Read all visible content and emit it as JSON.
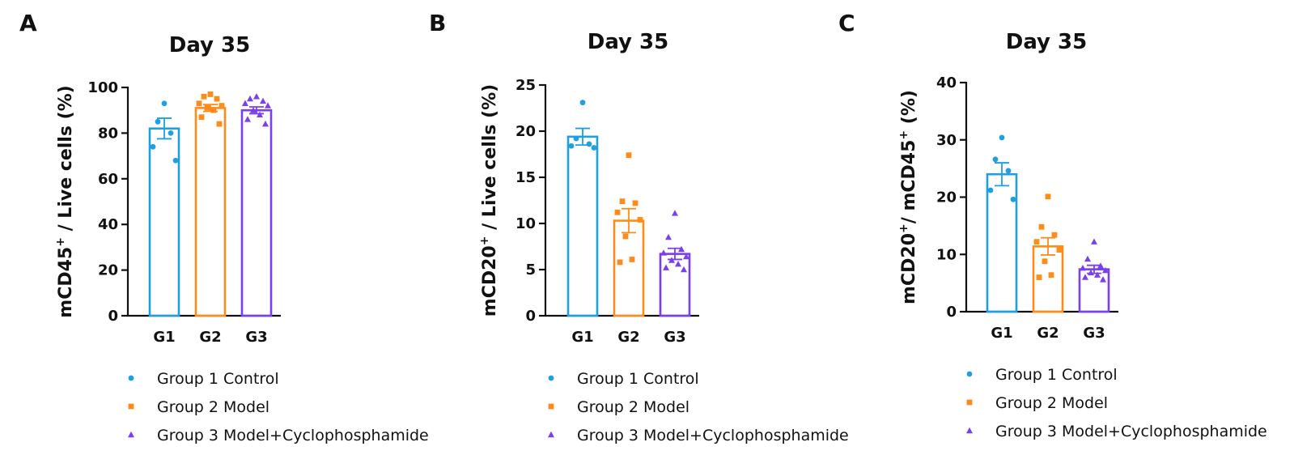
{
  "legend": [
    {
      "label": "Group 1 Control",
      "marker": "circle",
      "color": "#1ea0e0"
    },
    {
      "label": "Group 2 Model",
      "marker": "square",
      "color": "#ff8c1a"
    },
    {
      "label": "Group 3 Model+Cyclophosphamide",
      "marker": "triangle",
      "color": "#7a3ff0"
    }
  ],
  "chart_data": [
    {
      "type": "bar",
      "panel": "A",
      "title": "Day 35",
      "ylabel_main": "mCD45",
      "ylabel_sup": "+",
      "ylabel_rest": "/ Live cells (%)",
      "categories": [
        "G1",
        "G2",
        "G3"
      ],
      "values": [
        82,
        91,
        90
      ],
      "sem": [
        4.5,
        1.5,
        1.5
      ],
      "points": [
        [
          93,
          85,
          80,
          74,
          68
        ],
        [
          97,
          96,
          95,
          93,
          92,
          91,
          90,
          87,
          84
        ],
        [
          96,
          95,
          94,
          93,
          92,
          90,
          88,
          86,
          84
        ]
      ],
      "ylim": [
        0,
        100
      ],
      "yticks": [
        0,
        20,
        40,
        60,
        80,
        100
      ]
    },
    {
      "type": "bar",
      "panel": "B",
      "title": "Day 35",
      "ylabel_main": "mCD20",
      "ylabel_sup": "+",
      "ylabel_rest": "/ Live cells (%)",
      "categories": [
        "G1",
        "G2",
        "G3"
      ],
      "values": [
        19.4,
        10.3,
        6.7
      ],
      "sem": [
        0.9,
        1.3,
        0.6
      ],
      "points": [
        [
          23.1,
          19.2,
          18.6,
          18.4,
          18.2
        ],
        [
          17.4,
          12.4,
          12.2,
          11.2,
          10.4,
          8.6,
          6.1,
          5.8
        ],
        [
          11.1,
          8.5,
          7.2,
          6.8,
          6.4,
          6.0,
          5.6,
          5.2,
          5.0
        ]
      ],
      "ylim": [
        0,
        25
      ],
      "yticks": [
        0,
        5,
        10,
        15,
        20,
        25
      ]
    },
    {
      "type": "bar",
      "panel": "C",
      "title": "Day 35",
      "ylabel_main": "mCD20",
      "ylabel_sup": "+",
      "ylabel_mid": "/ mCD45",
      "ylabel_sup2": "+",
      "ylabel_rest": " (%)",
      "categories": [
        "G1",
        "G2",
        "G3"
      ],
      "values": [
        24,
        11.4,
        7.4
      ],
      "sem": [
        2.0,
        1.5,
        0.7
      ],
      "points": [
        [
          30.4,
          26.6,
          24.6,
          21.2,
          19.6
        ],
        [
          20.1,
          14.8,
          13.4,
          12.2,
          10.8,
          8.8,
          6.4,
          6.0
        ],
        [
          12.2,
          9.2,
          8.0,
          7.6,
          7.2,
          6.8,
          6.4,
          6.0,
          5.6
        ]
      ],
      "ylim": [
        0,
        40
      ],
      "yticks": [
        0,
        10,
        20,
        30,
        40
      ]
    }
  ]
}
